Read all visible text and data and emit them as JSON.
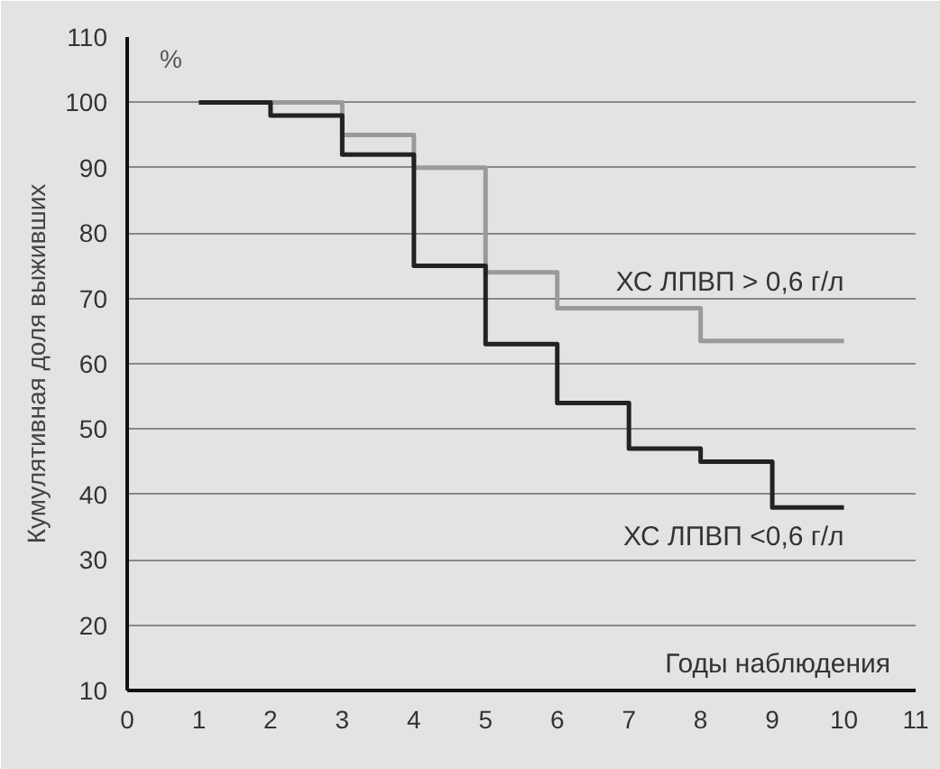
{
  "chart_data": {
    "type": "step",
    "xlabel": "Годы наблюдения",
    "ylabel": "Кумулятивная доля выживших",
    "annotations": [
      "%"
    ],
    "x": [
      1,
      2,
      3,
      4,
      5,
      6,
      7,
      8,
      9,
      10
    ],
    "series": [
      {
        "name": "ХС ЛПВП > 0,6 г/л",
        "color": "#9a9a9a",
        "values": [
          100,
          100,
          95,
          90,
          74,
          68.5,
          68.5,
          63.5,
          63.5,
          63.5
        ]
      },
      {
        "name": "ХС ЛПВП <0,6 г/л",
        "color": "#222222",
        "values": [
          100,
          98,
          92,
          75,
          63,
          54,
          47,
          45,
          38,
          38
        ]
      }
    ],
    "xlim": [
      0,
      11
    ],
    "ylim": [
      10,
      110
    ],
    "xticks": [
      0,
      1,
      2,
      3,
      4,
      5,
      6,
      7,
      8,
      9,
      10,
      11
    ],
    "yticks": [
      10,
      20,
      30,
      40,
      50,
      60,
      70,
      80,
      90,
      100,
      110
    ],
    "grid": "y",
    "line_style": "solid",
    "marker": "none"
  }
}
